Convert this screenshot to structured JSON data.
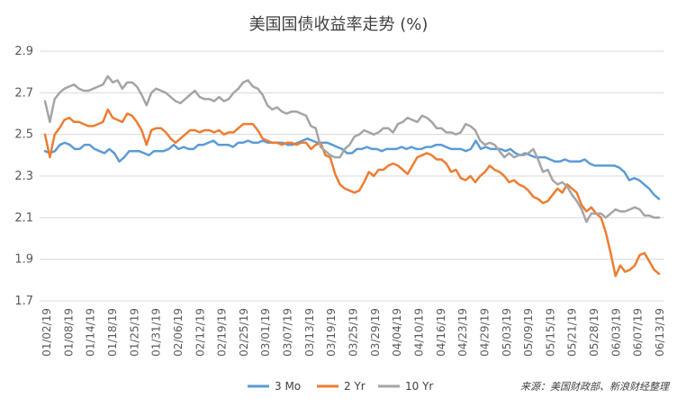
{
  "chart_data": {
    "type": "line",
    "title": "美国国债收益率走势 (%)",
    "xlabel": "",
    "ylabel": "",
    "ylim": [
      1.7,
      2.9
    ],
    "yticks": [
      "1.7",
      "1.9",
      "2.1",
      "2.3",
      "2.5",
      "2.7",
      "2.9"
    ],
    "grid": "horizontal",
    "legend": "bottom",
    "source": "来源：美国财政部、新浪财经整理",
    "x_tick_labels": [
      "01/02/19",
      "01/08/19",
      "01/14/19",
      "01/18/19",
      "01/25/19",
      "01/31/19",
      "02/06/19",
      "02/12/19",
      "02/19/19",
      "02/25/19",
      "03/01/19",
      "03/07/19",
      "03/13/19",
      "03/19/19",
      "03/25/19",
      "03/29/19",
      "04/04/19",
      "04/10/19",
      "04/16/19",
      "04/23/19",
      "04/29/19",
      "05/03/19",
      "05/09/19",
      "05/15/19",
      "05/21/19",
      "05/28/19",
      "06/03/19",
      "06/07/19",
      "06/13/19"
    ],
    "series": [
      {
        "name": "3 Mo",
        "color": "#5B9BD5",
        "values": [
          2.42,
          2.41,
          2.42,
          2.45,
          2.46,
          2.45,
          2.43,
          2.43,
          2.45,
          2.45,
          2.43,
          2.42,
          2.41,
          2.43,
          2.41,
          2.37,
          2.39,
          2.42,
          2.42,
          2.42,
          2.41,
          2.4,
          2.42,
          2.42,
          2.42,
          2.43,
          2.45,
          2.43,
          2.44,
          2.43,
          2.43,
          2.45,
          2.45,
          2.46,
          2.47,
          2.45,
          2.45,
          2.45,
          2.44,
          2.46,
          2.46,
          2.47,
          2.46,
          2.46,
          2.47,
          2.46,
          2.46,
          2.46,
          2.46,
          2.45,
          2.45,
          2.46,
          2.47,
          2.48,
          2.47,
          2.46,
          2.46,
          2.46,
          2.45,
          2.44,
          2.43,
          2.41,
          2.41,
          2.43,
          2.43,
          2.44,
          2.43,
          2.43,
          2.42,
          2.43,
          2.43,
          2.43,
          2.44,
          2.43,
          2.44,
          2.43,
          2.43,
          2.44,
          2.44,
          2.45,
          2.45,
          2.44,
          2.43,
          2.43,
          2.43,
          2.42,
          2.43,
          2.47,
          2.43,
          2.44,
          2.43,
          2.43,
          2.43,
          2.42,
          2.43,
          2.41,
          2.4,
          2.41,
          2.4,
          2.39,
          2.39,
          2.39,
          2.38,
          2.37,
          2.37,
          2.38,
          2.37,
          2.37,
          2.37,
          2.38,
          2.36,
          2.35,
          2.35,
          2.35,
          2.35,
          2.35,
          2.34,
          2.32,
          2.28,
          2.29,
          2.28,
          2.26,
          2.24,
          2.21,
          2.19
        ]
      },
      {
        "name": "2 Yr",
        "color": "#ED7D31",
        "values": [
          2.5,
          2.39,
          2.5,
          2.53,
          2.57,
          2.58,
          2.56,
          2.56,
          2.55,
          2.54,
          2.54,
          2.55,
          2.56,
          2.62,
          2.58,
          2.57,
          2.56,
          2.6,
          2.59,
          2.56,
          2.52,
          2.45,
          2.52,
          2.53,
          2.53,
          2.51,
          2.48,
          2.46,
          2.48,
          2.5,
          2.52,
          2.52,
          2.51,
          2.52,
          2.52,
          2.51,
          2.52,
          2.5,
          2.51,
          2.51,
          2.53,
          2.55,
          2.55,
          2.55,
          2.52,
          2.48,
          2.47,
          2.46,
          2.46,
          2.45,
          2.46,
          2.46,
          2.45,
          2.46,
          2.46,
          2.43,
          2.45,
          2.46,
          2.4,
          2.39,
          2.31,
          2.26,
          2.24,
          2.23,
          2.22,
          2.23,
          2.27,
          2.32,
          2.3,
          2.33,
          2.33,
          2.35,
          2.36,
          2.35,
          2.33,
          2.31,
          2.35,
          2.39,
          2.4,
          2.41,
          2.4,
          2.38,
          2.38,
          2.36,
          2.32,
          2.33,
          2.29,
          2.28,
          2.3,
          2.27,
          2.3,
          2.32,
          2.35,
          2.33,
          2.32,
          2.3,
          2.27,
          2.28,
          2.26,
          2.25,
          2.23,
          2.2,
          2.19,
          2.17,
          2.18,
          2.21,
          2.24,
          2.22,
          2.26,
          2.24,
          2.22,
          2.16,
          2.13,
          2.15,
          2.12,
          2.1,
          2.03,
          1.93,
          1.82,
          1.87,
          1.84,
          1.85,
          1.87,
          1.92,
          1.93,
          1.89,
          1.85,
          1.83
        ]
      },
      {
        "name": "10 Yr",
        "color": "#A5A5A5",
        "values": [
          2.66,
          2.56,
          2.67,
          2.7,
          2.72,
          2.73,
          2.74,
          2.72,
          2.71,
          2.71,
          2.72,
          2.73,
          2.74,
          2.78,
          2.75,
          2.76,
          2.72,
          2.75,
          2.75,
          2.73,
          2.69,
          2.64,
          2.7,
          2.72,
          2.71,
          2.7,
          2.68,
          2.66,
          2.65,
          2.67,
          2.69,
          2.71,
          2.68,
          2.67,
          2.67,
          2.66,
          2.68,
          2.66,
          2.67,
          2.7,
          2.72,
          2.75,
          2.76,
          2.73,
          2.72,
          2.69,
          2.64,
          2.62,
          2.63,
          2.61,
          2.6,
          2.61,
          2.61,
          2.6,
          2.59,
          2.54,
          2.53,
          2.44,
          2.42,
          2.4,
          2.39,
          2.39,
          2.43,
          2.45,
          2.49,
          2.5,
          2.52,
          2.51,
          2.5,
          2.51,
          2.53,
          2.53,
          2.51,
          2.55,
          2.56,
          2.58,
          2.57,
          2.56,
          2.59,
          2.58,
          2.56,
          2.53,
          2.53,
          2.51,
          2.51,
          2.5,
          2.51,
          2.55,
          2.54,
          2.52,
          2.47,
          2.45,
          2.46,
          2.45,
          2.42,
          2.39,
          2.41,
          2.39,
          2.4,
          2.4,
          2.41,
          2.43,
          2.38,
          2.32,
          2.33,
          2.28,
          2.26,
          2.27,
          2.25,
          2.21,
          2.18,
          2.14,
          2.08,
          2.12,
          2.12,
          2.12,
          2.1,
          2.12,
          2.14,
          2.13,
          2.13,
          2.14,
          2.15,
          2.14,
          2.11,
          2.11,
          2.1,
          2.1
        ]
      }
    ]
  }
}
